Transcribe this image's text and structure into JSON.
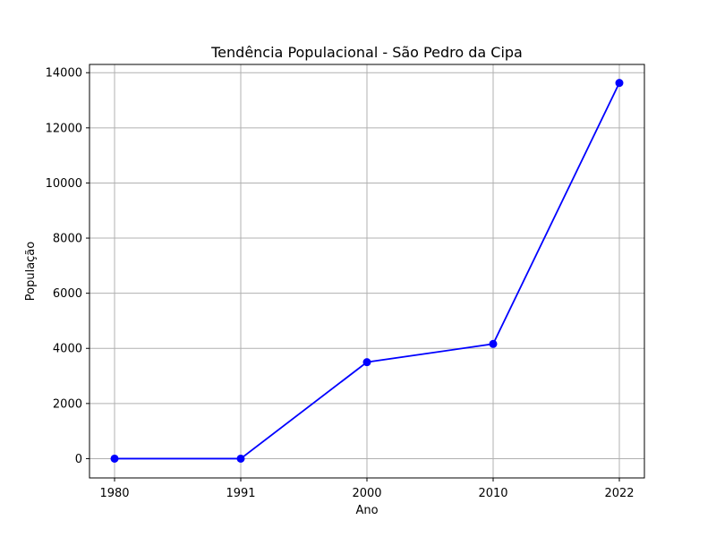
{
  "chart_data": {
    "type": "line",
    "title": "Tendência Populacional - São Pedro da Cipa",
    "xlabel": "Ano",
    "ylabel": "População",
    "categories": [
      "1980",
      "1991",
      "2000",
      "2010",
      "2022"
    ],
    "series": [
      {
        "values": [
          0,
          0,
          3500,
          4160,
          13630
        ],
        "color": "#0000ff",
        "marker": "circle"
      }
    ],
    "ylim": [
      -700,
      14300
    ],
    "yticks": [
      0,
      2000,
      4000,
      6000,
      8000,
      10000,
      12000,
      14000
    ],
    "grid": true
  }
}
